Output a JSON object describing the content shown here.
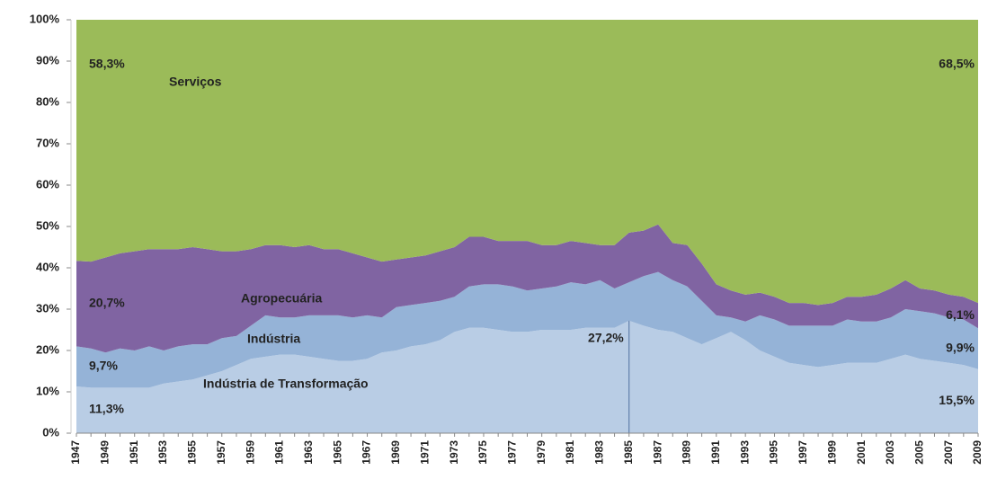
{
  "chart_data": {
    "type": "stacked_area",
    "categories": [
      "1947",
      null,
      "1949",
      null,
      "1951",
      null,
      "1953",
      null,
      "1955",
      null,
      "1957",
      null,
      "1959",
      null,
      "1961",
      null,
      "1963",
      null,
      "1965",
      null,
      "1967",
      null,
      "1969",
      null,
      "1971",
      null,
      "1973",
      null,
      "1975",
      null,
      "1977",
      null,
      "1979",
      null,
      "1981",
      null,
      "1983",
      null,
      "1985",
      null,
      "1987",
      null,
      "1989",
      null,
      "1991",
      null,
      "1993",
      null,
      "1995",
      null,
      "1997",
      null,
      "1999",
      null,
      "2001",
      null,
      "2003",
      null,
      "2005",
      null,
      "2007",
      null,
      "2009"
    ],
    "ylim": [
      0,
      100
    ],
    "yticks": [
      {
        "value": 0,
        "label": "0%"
      },
      {
        "value": 10,
        "label": "10%"
      },
      {
        "value": 20,
        "label": "20%"
      },
      {
        "value": 30,
        "label": "30%"
      },
      {
        "value": 40,
        "label": "40%"
      },
      {
        "value": 50,
        "label": "50%"
      },
      {
        "value": 60,
        "label": "60%"
      },
      {
        "value": 70,
        "label": "70%"
      },
      {
        "value": 80,
        "label": "80%"
      },
      {
        "value": 90,
        "label": "90%"
      },
      {
        "value": 100,
        "label": "100%"
      }
    ],
    "series": [
      {
        "name": "Indústria de Transformação",
        "color": "#b9cde5",
        "values": [
          11.3,
          11,
          11,
          11,
          11,
          11,
          12,
          12.5,
          13,
          14,
          15,
          16.5,
          18,
          18.5,
          19,
          19,
          18.5,
          18,
          17.5,
          17.5,
          18,
          19.5,
          20,
          21,
          21.5,
          22.5,
          24.5,
          25.5,
          25.5,
          25,
          24.5,
          24.5,
          25,
          25,
          25,
          25.5,
          25.5,
          25.5,
          27.2,
          26,
          25,
          24.5,
          23,
          21.5,
          23,
          24.5,
          22.5,
          20,
          18.5,
          17,
          16.5,
          16,
          16.5,
          17,
          17,
          17,
          18,
          19,
          18,
          17.5,
          17,
          16.5,
          15.5
        ],
        "value_labels": [
          "11,3%",
          null,
          null,
          null,
          null,
          null,
          null,
          null,
          null,
          null,
          null,
          null,
          null,
          null,
          null,
          null,
          null,
          null,
          null,
          null,
          null,
          null,
          null,
          null,
          null,
          null,
          null,
          null,
          null,
          null,
          null,
          null,
          null,
          null,
          null,
          null,
          null,
          null,
          "27,2%",
          null,
          null,
          null,
          null,
          null,
          null,
          null,
          null,
          null,
          null,
          null,
          null,
          null,
          null,
          null,
          null,
          null,
          null,
          null,
          null,
          null,
          null,
          null,
          "15,5%"
        ]
      },
      {
        "name": "Indústria",
        "color": "#95b3d7",
        "values": [
          9.7,
          9.5,
          8.5,
          9.5,
          9,
          10,
          8,
          8.5,
          8.5,
          7.5,
          8,
          7,
          8,
          10,
          9,
          9,
          10,
          10.5,
          11,
          10.5,
          10.5,
          8.5,
          10.5,
          10,
          10,
          9.5,
          8.5,
          10,
          10.5,
          11,
          11,
          10,
          10,
          10.5,
          11.5,
          10.5,
          11.5,
          9.5,
          9.3,
          12,
          14,
          12.5,
          12.5,
          10.5,
          5.5,
          3.5,
          4.5,
          8.5,
          9,
          9,
          9.5,
          10,
          9.5,
          10.5,
          10,
          10,
          10,
          11,
          11.5,
          11.5,
          11,
          11,
          9.9
        ],
        "value_labels": [
          "9,7%",
          null,
          null,
          null,
          null,
          null,
          null,
          null,
          null,
          null,
          null,
          null,
          null,
          null,
          null,
          null,
          null,
          null,
          null,
          null,
          null,
          null,
          null,
          null,
          null,
          null,
          null,
          null,
          null,
          null,
          null,
          null,
          null,
          null,
          null,
          null,
          null,
          null,
          null,
          null,
          null,
          null,
          null,
          null,
          null,
          null,
          null,
          null,
          null,
          null,
          null,
          null,
          null,
          null,
          null,
          null,
          null,
          null,
          null,
          null,
          null,
          null,
          "9,9%"
        ]
      },
      {
        "name": "Agropecuária",
        "color": "#8064a2",
        "values": [
          20.7,
          21,
          23,
          23,
          24,
          23.5,
          24.5,
          23.5,
          23.5,
          23,
          21,
          20.5,
          18.5,
          17,
          17.5,
          17,
          17,
          16,
          16,
          15.5,
          14,
          13.5,
          11.5,
          11.5,
          11.5,
          12,
          12,
          12,
          11.5,
          10.5,
          11,
          12,
          10.5,
          10,
          10,
          10,
          8.5,
          10.5,
          12,
          11,
          11.5,
          9,
          10,
          9,
          7.5,
          6.5,
          6.5,
          5.5,
          5.5,
          5.5,
          5.5,
          5,
          5.5,
          5.5,
          6,
          6.5,
          7,
          7,
          5.5,
          5.5,
          5.5,
          5.5,
          6.1
        ],
        "value_labels": [
          "20,7%",
          null,
          null,
          null,
          null,
          null,
          null,
          null,
          null,
          null,
          null,
          null,
          null,
          null,
          null,
          null,
          null,
          null,
          null,
          null,
          null,
          null,
          null,
          null,
          null,
          null,
          null,
          null,
          null,
          null,
          null,
          null,
          null,
          null,
          null,
          null,
          null,
          null,
          null,
          null,
          null,
          null,
          null,
          null,
          null,
          null,
          null,
          null,
          null,
          null,
          null,
          null,
          null,
          null,
          null,
          null,
          null,
          null,
          null,
          null,
          null,
          null,
          "6,1%"
        ]
      },
      {
        "name": "Serviços",
        "color": "#9bbb59",
        "values": [
          58.3,
          58.5,
          57.5,
          56.5,
          56,
          55.5,
          55.5,
          55.5,
          55,
          55.5,
          56,
          56,
          55.5,
          54.5,
          54.5,
          55,
          54.5,
          55.5,
          55.5,
          56.5,
          57.5,
          58.5,
          58,
          57.5,
          57,
          56,
          55,
          52.5,
          52.5,
          53.5,
          53.5,
          53.5,
          54.5,
          54.5,
          53.5,
          54,
          54.5,
          54.5,
          51.5,
          51,
          49.5,
          54,
          54.5,
          59,
          64,
          65.5,
          66.5,
          66,
          67,
          68.5,
          68.5,
          69,
          68.5,
          67,
          67,
          66.5,
          65,
          63,
          65,
          65.5,
          66.5,
          67,
          68.5
        ],
        "value_labels": [
          "58,3%",
          null,
          null,
          null,
          null,
          null,
          null,
          null,
          null,
          null,
          null,
          null,
          null,
          null,
          null,
          null,
          null,
          null,
          null,
          null,
          null,
          null,
          null,
          null,
          null,
          null,
          null,
          null,
          null,
          null,
          null,
          null,
          null,
          null,
          null,
          null,
          null,
          null,
          null,
          null,
          null,
          null,
          null,
          null,
          null,
          null,
          null,
          null,
          null,
          null,
          null,
          null,
          null,
          null,
          null,
          null,
          null,
          null,
          null,
          null,
          null,
          null,
          "68,5%"
        ]
      }
    ]
  }
}
